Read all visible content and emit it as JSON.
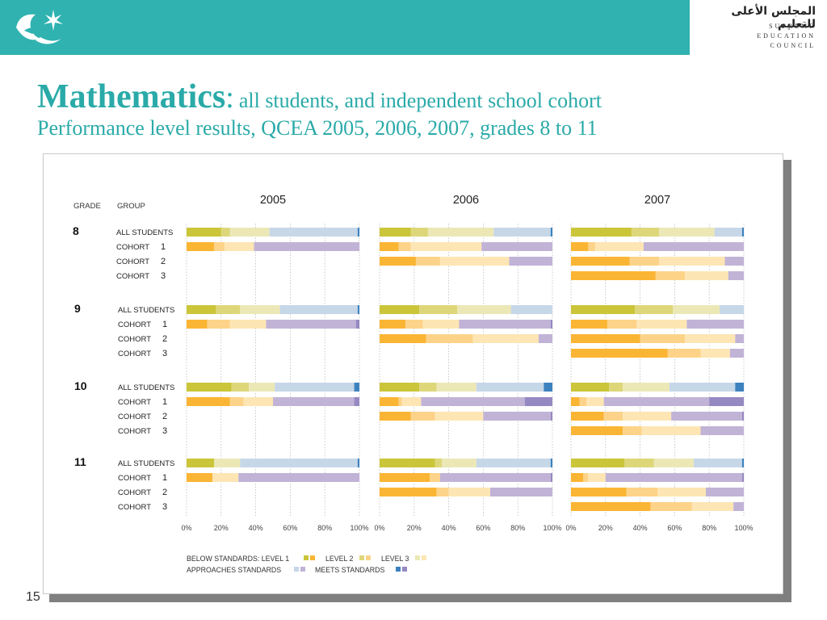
{
  "header": {
    "org_arabic": "المجلس الأعلى للتعليم",
    "org_english": [
      "SUPREME",
      "EDUCATION",
      "COUNCIL"
    ]
  },
  "title": {
    "main": "Mathematics",
    "colon": ":",
    "subtitle": "all students, and independent school cohort",
    "line2": "Performance level results, QCEA 2005, 2006, 2007, grades 8 to 11"
  },
  "page_number": "15",
  "chart_data": {
    "type": "bar",
    "stacked": true,
    "orientation": "horizontal",
    "column_headers": {
      "grade": "GRADE",
      "group": "GROUP"
    },
    "years": [
      "2005",
      "2006",
      "2007"
    ],
    "x_ticks": [
      "0%",
      "20%",
      "40%",
      "60%",
      "80%",
      "100%"
    ],
    "xlim": [
      0,
      100
    ],
    "grid": true,
    "segments": [
      "Below Standards: Level 1",
      "Below Standards: Level 2",
      "Below Standards: Level 3",
      "Approaches Standards",
      "Meets Standards"
    ],
    "colors": {
      "all_students": [
        "#cbc53a",
        "#ddd77a",
        "#ece8b6",
        "#c6d7e8",
        "#3d82bf"
      ],
      "cohort": [
        "#fbb534",
        "#fdd389",
        "#fde6b4",
        "#c1b3d6",
        "#9589c1"
      ]
    },
    "legend": {
      "label1": "BELOW STANDARDS: LEVEL 1",
      "label2": "LEVEL 2",
      "label3": "LEVEL 3",
      "label4": "APPROACHES STANDARDS",
      "label5": "MEETS STANDARDS"
    },
    "grades": [
      {
        "grade": "8",
        "rows": [
          {
            "label": "ALL STUDENTS",
            "type": "all",
            "values": {
              "2005": [
                20,
                5,
                23,
                51,
                1
              ],
              "2006": [
                18,
                10,
                38,
                33,
                1
              ],
              "2007": [
                35,
                16,
                32,
                16,
                1
              ]
            }
          },
          {
            "label": "COHORT",
            "num": "1",
            "type": "cohort",
            "values": {
              "2005": [
                16,
                6,
                17,
                61,
                0
              ],
              "2006": [
                11,
                7,
                41,
                41,
                0
              ],
              "2007": [
                10,
                4,
                28,
                58,
                0
              ]
            }
          },
          {
            "label": "COHORT",
            "num": "2",
            "type": "cohort",
            "values": {
              "2005": null,
              "2006": [
                21,
                14,
                40,
                25,
                0
              ],
              "2007": [
                34,
                17,
                38,
                11,
                0
              ]
            }
          },
          {
            "label": "COHORT",
            "num": "3",
            "type": "cohort",
            "values": {
              "2005": null,
              "2006": null,
              "2007": [
                49,
                17,
                25,
                9,
                0
              ]
            }
          }
        ]
      },
      {
        "grade": "9",
        "rows": [
          {
            "label": "ALL STUDENTS",
            "type": "all",
            "values": {
              "2005": [
                17,
                14,
                23,
                45,
                1
              ],
              "2006": [
                23,
                22,
                31,
                24,
                0
              ],
              "2007": [
                37,
                22,
                27,
                14,
                0
              ]
            }
          },
          {
            "label": "COHORT",
            "num": "1",
            "type": "cohort",
            "values": {
              "2005": [
                12,
                13,
                21,
                52,
                2
              ],
              "2006": [
                15,
                10,
                21,
                53,
                1
              ],
              "2007": [
                21,
                17,
                29,
                33,
                0
              ]
            }
          },
          {
            "label": "COHORT",
            "num": "2",
            "type": "cohort",
            "values": {
              "2005": null,
              "2006": [
                27,
                27,
                38,
                8,
                0
              ],
              "2007": [
                40,
                26,
                29,
                5,
                0
              ]
            }
          },
          {
            "label": "COHORT",
            "num": "3",
            "type": "cohort",
            "values": {
              "2005": null,
              "2006": null,
              "2007": [
                56,
                19,
                17,
                8,
                0
              ]
            }
          }
        ]
      },
      {
        "grade": "10",
        "rows": [
          {
            "label": "ALL STUDENTS",
            "type": "all",
            "values": {
              "2005": [
                26,
                10,
                15,
                46,
                3
              ],
              "2006": [
                23,
                10,
                23,
                39,
                5
              ],
              "2007": [
                22,
                8,
                27,
                38,
                5
              ]
            }
          },
          {
            "label": "COHORT",
            "num": "1",
            "type": "cohort",
            "values": {
              "2005": [
                25,
                8,
                17,
                47,
                3
              ],
              "2006": [
                11,
                2,
                11,
                60,
                16
              ],
              "2007": [
                5,
                4,
                10,
                61,
                20
              ]
            }
          },
          {
            "label": "COHORT",
            "num": "2",
            "type": "cohort",
            "values": {
              "2005": null,
              "2006": [
                18,
                14,
                28,
                39,
                1
              ],
              "2007": [
                19,
                11,
                28,
                41,
                1
              ]
            }
          },
          {
            "label": "COHORT",
            "num": "3",
            "type": "cohort",
            "values": {
              "2005": null,
              "2006": null,
              "2007": [
                30,
                11,
                34,
                25,
                0
              ]
            }
          }
        ]
      },
      {
        "grade": "11",
        "rows": [
          {
            "label": "ALL STUDENTS",
            "type": "all",
            "values": {
              "2005": [
                16,
                0,
                15,
                68,
                1
              ],
              "2006": [
                32,
                4,
                20,
                43,
                1
              ],
              "2007": [
                31,
                17,
                23,
                28,
                1
              ]
            }
          },
          {
            "label": "COHORT",
            "num": "1",
            "type": "cohort",
            "values": {
              "2005": [
                15,
                0,
                15,
                70,
                0
              ],
              "2006": [
                29,
                6,
                0,
                64,
                1
              ],
              "2007": [
                7,
                3,
                10,
                79,
                1
              ]
            }
          },
          {
            "label": "COHORT",
            "num": "2",
            "type": "cohort",
            "values": {
              "2005": null,
              "2006": [
                33,
                7,
                24,
                36,
                0
              ],
              "2007": [
                32,
                18,
                28,
                22,
                0
              ]
            }
          },
          {
            "label": "COHORT",
            "num": "3",
            "type": "cohort",
            "values": {
              "2005": null,
              "2006": null,
              "2007": [
                46,
                24,
                24,
                6,
                0
              ]
            }
          }
        ]
      }
    ]
  }
}
